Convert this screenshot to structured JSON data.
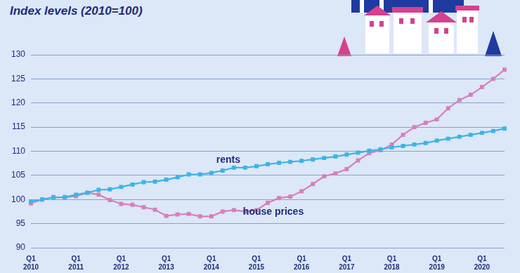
{
  "chart_data": {
    "type": "line",
    "title": "Index levels (2010=100)",
    "categories": [
      [
        "Q1",
        "2010"
      ],
      null,
      null,
      null,
      [
        "Q1",
        "2011"
      ],
      null,
      null,
      null,
      [
        "Q1",
        "2012"
      ],
      null,
      null,
      null,
      [
        "Q1",
        "2013"
      ],
      null,
      null,
      null,
      [
        "Q1",
        "2014"
      ],
      null,
      null,
      null,
      [
        "Q1",
        "2015"
      ],
      null,
      null,
      null,
      [
        "Q1",
        "2016"
      ],
      null,
      null,
      null,
      [
        "Q1",
        "2017"
      ],
      null,
      null,
      null,
      [
        "Q1",
        "2018"
      ],
      null,
      null,
      null,
      [
        "Q1",
        "2019"
      ],
      null,
      null,
      null,
      [
        "Q1",
        "2020"
      ],
      null,
      null
    ],
    "series": [
      {
        "name": "rents",
        "color": "#3db4e5",
        "marker": "square",
        "line_style": "solid",
        "values": [
          99.6,
          100.0,
          100.4,
          100.5,
          101.0,
          101.4,
          102.0,
          102.1,
          102.6,
          103.1,
          103.6,
          103.7,
          104.1,
          104.6,
          105.2,
          105.2,
          105.5,
          106.0,
          106.6,
          106.6,
          106.9,
          107.3,
          107.6,
          107.8,
          108.0,
          108.3,
          108.6,
          108.9,
          109.3,
          109.7,
          110.1,
          110.4,
          110.8,
          111.1,
          111.4,
          111.7,
          112.2,
          112.6,
          113.0,
          113.4,
          113.8,
          114.2,
          114.7
        ]
      },
      {
        "name": "house prices",
        "color": "#d580bb",
        "marker": "square",
        "line_style": "solid",
        "values": [
          99.2,
          100.0,
          100.5,
          100.4,
          100.7,
          101.4,
          101.0,
          99.9,
          99.1,
          98.9,
          98.4,
          97.9,
          96.6,
          96.9,
          97.0,
          96.5,
          96.5,
          97.5,
          97.8,
          97.5,
          97.8,
          99.3,
          100.3,
          100.6,
          101.7,
          103.2,
          104.8,
          105.4,
          106.3,
          108.1,
          109.6,
          110.2,
          111.4,
          113.4,
          115.0,
          115.9,
          116.6,
          118.9,
          120.6,
          121.7,
          123.3,
          125.0,
          126.9
        ]
      }
    ],
    "ylim": [
      90,
      130
    ],
    "yticks": [
      90,
      95,
      100,
      105,
      110,
      115,
      120,
      125,
      130
    ],
    "grid": true,
    "legend": "none"
  }
}
